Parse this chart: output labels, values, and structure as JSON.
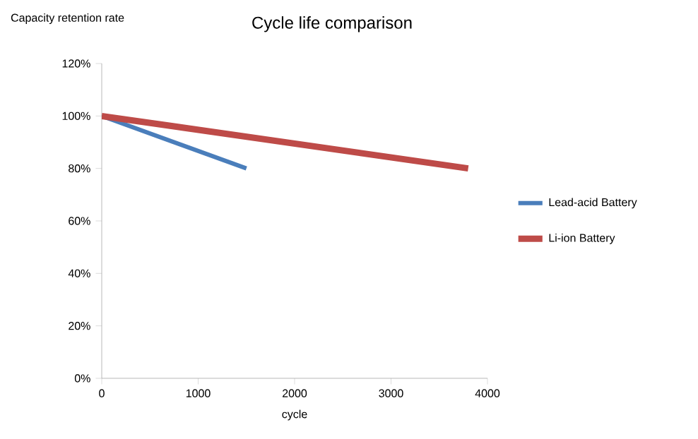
{
  "chart_data": {
    "type": "line",
    "title": "Cycle life comparison",
    "xlabel": "cycle",
    "ylabel": "Capacity retention rate",
    "series": [
      {
        "name": "Lead-acid Battery",
        "color": "#4a7ebb",
        "x": [
          0,
          1500
        ],
        "values": [
          100,
          80
        ]
      },
      {
        "name": "Li-ion Battery",
        "color": "#be4b48",
        "x": [
          0,
          3800
        ],
        "values": [
          100,
          80
        ]
      }
    ],
    "xlim": [
      0,
      4000
    ],
    "xticks": [
      0,
      1000,
      2000,
      3000,
      4000
    ],
    "ylim": [
      0,
      120
    ],
    "yticks": [
      {
        "value": 0,
        "label": "0%"
      },
      {
        "value": 20,
        "label": "20%"
      },
      {
        "value": 40,
        "label": "40%"
      },
      {
        "value": 60,
        "label": "60%"
      },
      {
        "value": 80,
        "label": "80%"
      },
      {
        "value": 100,
        "label": "100%"
      },
      {
        "value": 120,
        "label": "120%"
      }
    ],
    "grid": false,
    "legend": "right",
    "marker": "none",
    "line_style": "solid"
  }
}
